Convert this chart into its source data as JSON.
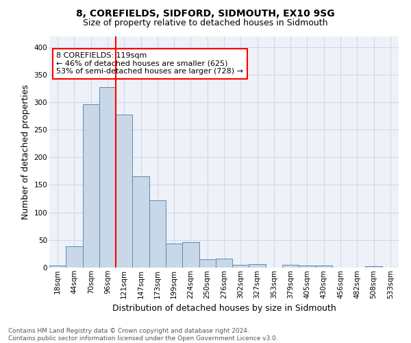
{
  "title1": "8, COREFIELDS, SIDFORD, SIDMOUTH, EX10 9SG",
  "title2": "Size of property relative to detached houses in Sidmouth",
  "xlabel": "Distribution of detached houses by size in Sidmouth",
  "ylabel": "Number of detached properties",
  "footnote": "Contains HM Land Registry data © Crown copyright and database right 2024.\nContains public sector information licensed under the Open Government Licence v3.0.",
  "bin_labels": [
    "18sqm",
    "44sqm",
    "70sqm",
    "96sqm",
    "121sqm",
    "147sqm",
    "173sqm",
    "199sqm",
    "224sqm",
    "250sqm",
    "276sqm",
    "302sqm",
    "327sqm",
    "353sqm",
    "379sqm",
    "405sqm",
    "430sqm",
    "456sqm",
    "482sqm",
    "508sqm",
    "533sqm"
  ],
  "bin_values": [
    4,
    38,
    296,
    327,
    278,
    165,
    122,
    43,
    46,
    15,
    16,
    5,
    6,
    0,
    5,
    4,
    4,
    0,
    0,
    3,
    0
  ],
  "bar_color": "#c8d8e8",
  "bar_edge_color": "#5a8ab0",
  "red_line_bin_index": 4,
  "annotation_text": "8 COREFIELDS: 119sqm\n← 46% of detached houses are smaller (625)\n53% of semi-detached houses are larger (728) →",
  "annotation_box_color": "white",
  "annotation_box_edge_color": "red",
  "ylim": [
    0,
    420
  ],
  "yticks": [
    0,
    50,
    100,
    150,
    200,
    250,
    300,
    350,
    400
  ],
  "grid_color": "#d0d8e8",
  "background_color": "#eef2f8",
  "title1_fontsize": 10,
  "title2_fontsize": 9,
  "ylabel_fontsize": 9,
  "xlabel_fontsize": 9,
  "tick_fontsize": 7.5,
  "footnote_fontsize": 6.5,
  "footnote_color": "#555555"
}
